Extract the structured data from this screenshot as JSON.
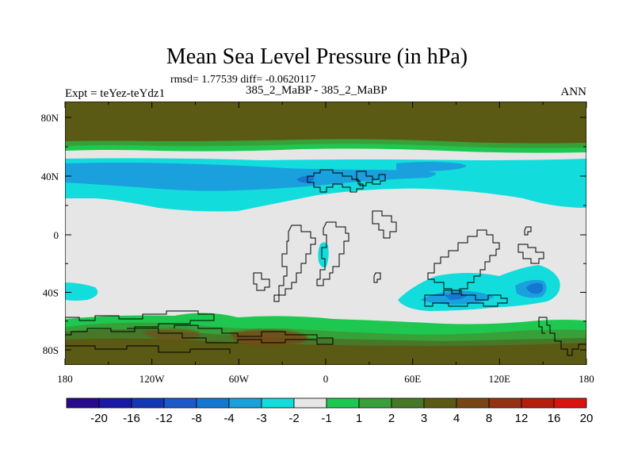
{
  "title": "Mean Sea Level Pressure (in hPa)",
  "stats": "rmsd= 1.77539 diff= -0.0620117",
  "runs": "385_2_MaBP - 385_2_MaBP",
  "expt": "Expt = teYez-teYdz1",
  "season": "ANN",
  "map": {
    "lat_ticks": [
      {
        "label": "80N",
        "lat": 80
      },
      {
        "label": "40N",
        "lat": 40
      },
      {
        "label": "0",
        "lat": 0
      },
      {
        "label": "40S",
        "lat": -40
      },
      {
        "label": "80S",
        "lat": -80
      }
    ],
    "lon_ticks": [
      {
        "label": "180",
        "lon": -180
      },
      {
        "label": "120W",
        "lon": -120
      },
      {
        "label": "60W",
        "lon": -60
      },
      {
        "label": "0",
        "lon": 0
      },
      {
        "label": "60E",
        "lon": 60
      },
      {
        "label": "120E",
        "lon": 120
      },
      {
        "label": "180",
        "lon": 180
      }
    ]
  },
  "colorbar": {
    "colors": [
      "#2a0a8c",
      "#1a1aa6",
      "#1438b4",
      "#1a5ac8",
      "#1478d2",
      "#1aa0dc",
      "#12dcdc",
      "#e6e6e6",
      "#1ec850",
      "#38a038",
      "#467828",
      "#5a5a14",
      "#784614",
      "#963214",
      "#b41e0a",
      "#dc1410"
    ],
    "labels": [
      "-20",
      "-16",
      "-12",
      "-8",
      "-4",
      "-3",
      "-2",
      "-1",
      "1",
      "2",
      "3",
      "4",
      "8",
      "12",
      "16",
      "20"
    ]
  }
}
